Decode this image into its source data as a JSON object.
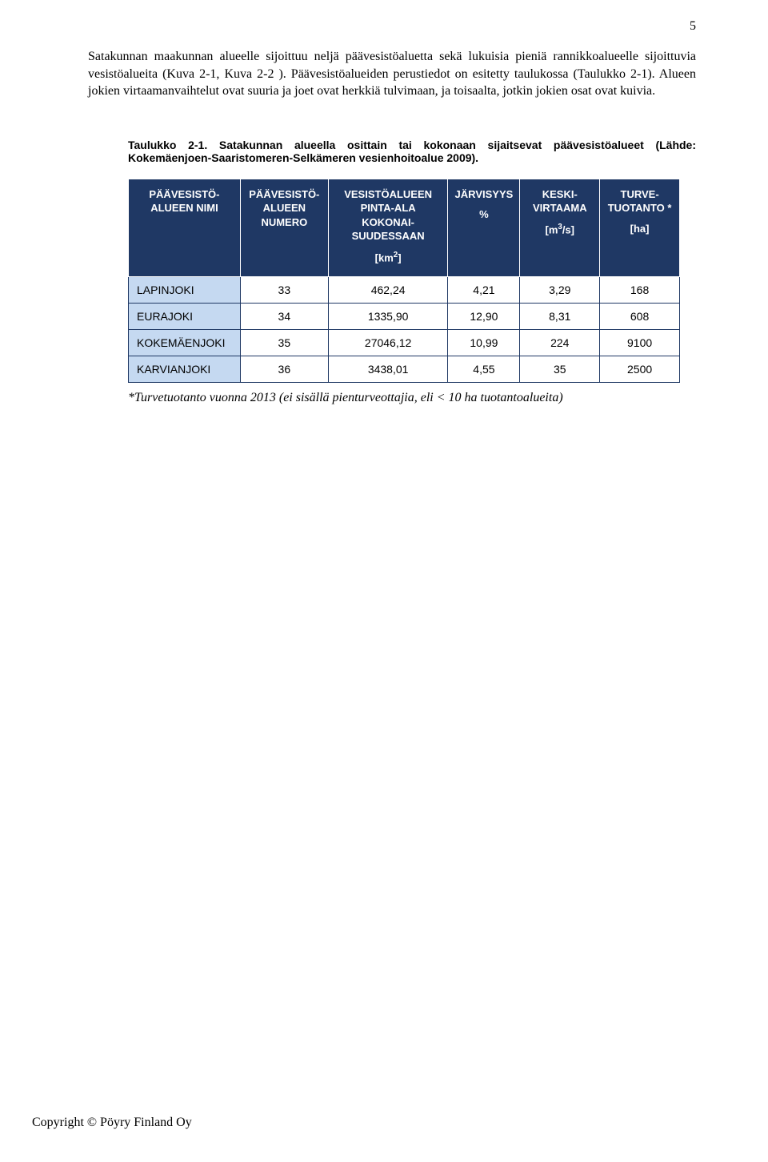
{
  "page_number": "5",
  "paragraph": "Satakunnan maakunnan alueelle sijoittuu neljä päävesistöaluetta sekä lukuisia pieniä rannikkoalueelle sijoittuvia vesistöalueita (Kuva 2-1, Kuva 2-2 ). Päävesistöalueiden perustiedot on esitetty taulukossa (Taulukko 2-1). Alueen jokien virtaamanvaihtelut ovat suuria ja joet ovat herkkiä tulvimaan, ja toisaalta, jotkin jokien osat ovat kuivia.",
  "caption": "Taulukko 2-1. Satakunnan alueella osittain tai kokonaan sijaitsevat päävesistöalueet (Lähde: Kokemäenjoen-Saaristomeren-Selkämeren vesienhoitoalue 2009).",
  "table": {
    "headers": {
      "c1": "PÄÄVESISTÖ-ALUEEN NIMI",
      "c2": "PÄÄVESISTÖ-ALUEEN NUMERO",
      "c3_a": "VESISTÖALUEEN PINTA-ALA KOKONAI-SUUDESSAAN",
      "c3_b": "[km",
      "c3_c": "]",
      "c4_a": "JÄRVISYYS",
      "c4_b": "%",
      "c5_a": "KESKI-VIRTAAMA",
      "c5_b": "[m",
      "c5_c": "/s]",
      "c6_a": "TURVE-TUOTANTO *",
      "c6_b": "[ha]"
    },
    "rows": [
      {
        "name": "LAPINJOKI",
        "num": "33",
        "area": "462,24",
        "lake": "4,21",
        "flow": "3,29",
        "peat": "168"
      },
      {
        "name": "EURAJOKI",
        "num": "34",
        "area": "1335,90",
        "lake": "12,90",
        "flow": "8,31",
        "peat": "608"
      },
      {
        "name": "KOKEMÄENJOKI",
        "num": "35",
        "area": "27046,12",
        "lake": "10,99",
        "flow": "224",
        "peat": "9100"
      },
      {
        "name": "KARVIANJOKI",
        "num": "36",
        "area": "3438,01",
        "lake": "4,55",
        "flow": "35",
        "peat": "2500"
      }
    ],
    "col_widths": [
      "140px",
      "110px",
      "150px",
      "90px",
      "100px",
      "100px"
    ],
    "header_bg": "#1f3864",
    "header_fg": "#ffffff",
    "name_bg": "#c5d9f1",
    "border_color": "#1f3864"
  },
  "footnote": "*Turvetuotanto vuonna 2013 (ei sisällä pienturveottajia, eli < 10 ha tuotantoalueita)",
  "copyright": "Copyright © Pöyry Finland Oy"
}
